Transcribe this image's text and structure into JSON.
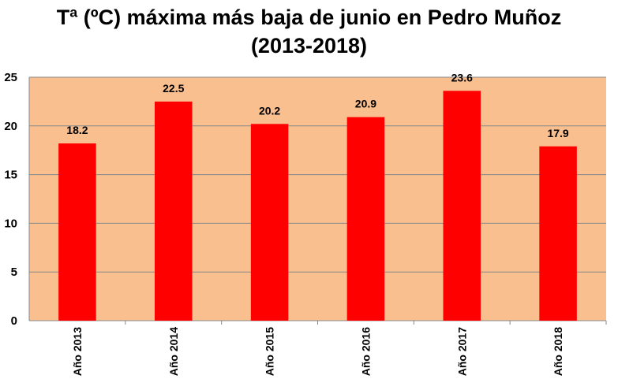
{
  "chart_data": {
    "type": "bar",
    "title_line1": "Tª (ºC) máxima más baja de junio en Pedro Muñoz",
    "title_line2": "(2013-2018)",
    "categories": [
      "Año 2013",
      "Año 2014",
      "Año 2015",
      "Año 2016",
      "Año 2017",
      "Año 2018"
    ],
    "values": [
      18.2,
      22.5,
      20.2,
      20.9,
      23.6,
      17.9
    ],
    "data_labels": [
      "18.2",
      "22.5",
      "20.2",
      "20.9",
      "23.6",
      "17.9"
    ],
    "ylim": [
      0,
      25
    ],
    "yticks": [
      0,
      5,
      10,
      15,
      20,
      25
    ],
    "grid": true,
    "legend": "none",
    "colors": {
      "bar": "#ff0000",
      "plot_background": "#f9bf8f",
      "gridline": "#888888"
    }
  }
}
